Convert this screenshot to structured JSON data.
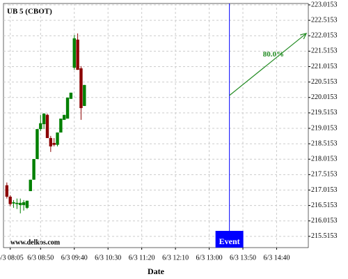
{
  "chart_data": {
    "type": "candlestick",
    "title": "UB 5 (CBOT)",
    "watermark": "www.delkos.com",
    "xlabel": "Date",
    "x": [
      "6/3 08:00",
      "6/3 08:05",
      "6/3 08:10",
      "6/3 08:15",
      "6/3 08:20",
      "6/3 08:25",
      "6/3 08:30",
      "6/3 08:35",
      "6/3 08:40",
      "6/3 08:45",
      "6/3 08:50",
      "6/3 08:55",
      "6/3 09:00",
      "6/3 09:05",
      "6/3 09:10",
      "6/3 09:15",
      "6/3 09:20",
      "6/3 09:25",
      "6/3 09:30",
      "6/3 09:35",
      "6/3 09:40",
      "6/3 09:45",
      "6/3 09:50",
      "6/3 09:55"
    ],
    "open": [
      217.17,
      216.8,
      216.58,
      216.56,
      216.53,
      216.53,
      216.44,
      216.98,
      217.35,
      218.02,
      218.99,
      219.15,
      219.45,
      218.7,
      218.54,
      218.48,
      218.88,
      219.29,
      219.33,
      219.97,
      220.98,
      221.89,
      220.96,
      219.74
    ],
    "high": [
      217.26,
      216.85,
      216.69,
      216.74,
      216.74,
      216.69,
      216.67,
      217.35,
      218.02,
      218.99,
      219.45,
      219.51,
      219.49,
      218.77,
      218.7,
      218.88,
      219.33,
      219.45,
      220.01,
      220.17,
      222.04,
      222.09,
      221.03,
      220.42
    ],
    "low": [
      216.74,
      216.49,
      216.44,
      216.4,
      216.26,
      216.35,
      216.4,
      216.98,
      217.35,
      218.02,
      218.93,
      218.99,
      218.7,
      218.25,
      218.43,
      218.43,
      218.88,
      219.29,
      219.33,
      219.97,
      220.91,
      220.91,
      219.29,
      219.74
    ],
    "close": [
      216.8,
      216.56,
      216.62,
      216.6,
      216.6,
      216.62,
      216.67,
      217.35,
      218.02,
      218.99,
      219.18,
      219.49,
      218.7,
      218.43,
      218.48,
      218.88,
      219.33,
      219.45,
      220.01,
      220.17,
      221.93,
      220.91,
      219.67,
      220.42
    ],
    "up_color": "#008000",
    "down_color": "#8b0000",
    "xlim": [
      "6/3 07:55",
      "6/3 15:27"
    ],
    "xticks": [
      "6/3 08:05",
      "6/3 08:50",
      "6/3 09:40",
      "6/3 10:30",
      "6/3 11:20",
      "6/3 12:10",
      "6/3 13:00",
      "6/3 13:50",
      "6/3 14:40"
    ],
    "ylim": [
      215.15,
      223.06
    ],
    "yticks": [
      215.5153,
      216.0153,
      216.5153,
      217.0153,
      217.5153,
      218.0153,
      218.5153,
      219.0153,
      219.5153,
      220.0153,
      220.5153,
      221.0153,
      221.5153,
      222.0153,
      222.5153,
      223.0153
    ],
    "grid": true,
    "event": {
      "x": "6/3 13:30",
      "label": "Event",
      "color": "#0000ff"
    },
    "arrow": {
      "x": [
        "6/3 13:30",
        "6/3 15:24"
      ],
      "y": [
        220.08,
        222.09
      ],
      "label": "80.0%",
      "color": "#228b22"
    }
  }
}
